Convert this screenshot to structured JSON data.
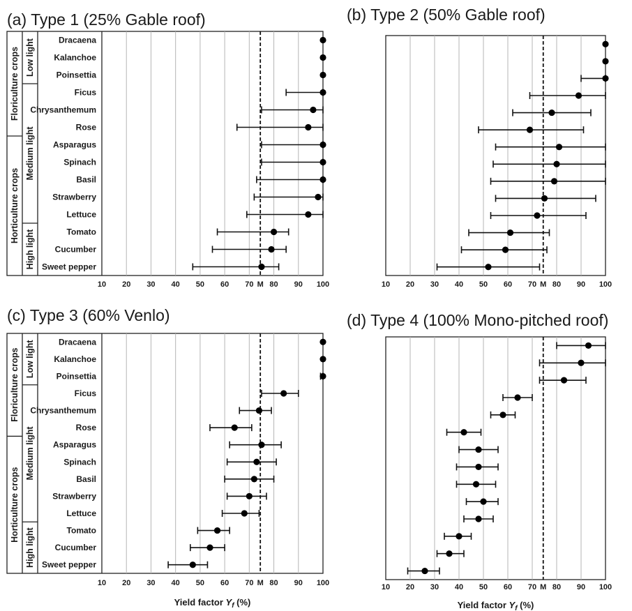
{
  "chart_data": [
    {
      "type": "errorbar-dot",
      "title": "(a) Type 1 (25% Gable roof)",
      "xlabel": "",
      "xlim": [
        10,
        100
      ],
      "xticks": [
        "10",
        "20",
        "30",
        "40",
        "50",
        "60",
        "70",
        "M",
        "80",
        "90",
        "100"
      ],
      "reference_line": {
        "label": "M",
        "x": 74.5,
        "style": "dashed"
      },
      "show_crop_labels": true,
      "categories": [
        "Dracaena",
        "Kalanchoe",
        "Poinsettia",
        "Ficus",
        "Chrysanthemum",
        "Rose",
        "Asparagus",
        "Spinach",
        "Basil",
        "Strawberry",
        "Lettuce",
        "Tomato",
        "Cucumber",
        "Sweet pepper"
      ],
      "values": [
        100,
        100,
        100,
        100,
        96,
        94,
        100,
        100,
        100,
        98,
        94,
        80,
        79,
        75
      ],
      "err_low": [
        100,
        100,
        100,
        85,
        75,
        65,
        75,
        75,
        73,
        72,
        69,
        57,
        55,
        47
      ],
      "err_high": [
        100,
        100,
        100,
        100,
        100,
        100,
        100,
        100,
        100,
        100,
        100,
        86,
        85,
        82
      ],
      "light_groups": [
        {
          "label": "Low light",
          "start": 0,
          "end": 2
        },
        {
          "label": "Medium light",
          "start": 3,
          "end": 10
        },
        {
          "label": "High light",
          "start": 11,
          "end": 13
        }
      ],
      "crop_groups": [
        {
          "label": "Floriculture crops",
          "start": 0,
          "end": 5
        },
        {
          "label": "Horticulture crops",
          "start": 6,
          "end": 13
        }
      ],
      "grid": "vertical"
    },
    {
      "type": "errorbar-dot",
      "title": "(b) Type 2 (50% Gable roof)",
      "xlabel": "",
      "xlim": [
        10,
        100
      ],
      "xticks": [
        "10",
        "20",
        "30",
        "40",
        "50",
        "60",
        "70",
        "M",
        "80",
        "90",
        "100"
      ],
      "reference_line": {
        "label": "M",
        "x": 74.5,
        "style": "dashed"
      },
      "show_crop_labels": false,
      "categories": [
        "Dracaena",
        "Kalanchoe",
        "Poinsettia",
        "Ficus",
        "Chrysanthemum",
        "Rose",
        "Asparagus",
        "Spinach",
        "Basil",
        "Strawberry",
        "Lettuce",
        "Tomato",
        "Cucumber",
        "Sweet pepper"
      ],
      "values": [
        100,
        100,
        100,
        89,
        78,
        69,
        81,
        80,
        79,
        75,
        72,
        61,
        59,
        52
      ],
      "err_low": [
        100,
        100,
        90,
        69,
        62,
        48,
        55,
        54,
        53,
        55,
        53,
        44,
        41,
        31
      ],
      "err_high": [
        100,
        100,
        100,
        100,
        94,
        91,
        100,
        100,
        100,
        96,
        92,
        77,
        76,
        73
      ],
      "grid": "vertical"
    },
    {
      "type": "errorbar-dot",
      "title": "(c) Type 3 (60% Venlo)",
      "xlabel": "Yield factor Y_f (%)",
      "xlim": [
        10,
        100
      ],
      "xticks": [
        "10",
        "20",
        "30",
        "40",
        "50",
        "60",
        "70",
        "M",
        "80",
        "90",
        "100"
      ],
      "reference_line": {
        "label": "M",
        "x": 74.5,
        "style": "dashed"
      },
      "show_crop_labels": true,
      "categories": [
        "Dracaena",
        "Kalanchoe",
        "Poinsettia",
        "Ficus",
        "Chrysanthemum",
        "Rose",
        "Asparagus",
        "Spinach",
        "Basil",
        "Strawberry",
        "Lettuce",
        "Tomato",
        "Cucumber",
        "Sweet pepper"
      ],
      "values": [
        100,
        100,
        100,
        84,
        74,
        64,
        75,
        73,
        72,
        70,
        68,
        57,
        54,
        47
      ],
      "err_low": [
        100,
        100,
        99,
        75,
        66,
        54,
        62,
        61,
        60,
        61,
        59,
        49,
        46,
        37
      ],
      "err_high": [
        100,
        100,
        100,
        90,
        79,
        71,
        83,
        81,
        80,
        77,
        74,
        62,
        60,
        53
      ],
      "light_groups": [
        {
          "label": "Low light",
          "start": 0,
          "end": 2
        },
        {
          "label": "Medium light",
          "start": 3,
          "end": 10
        },
        {
          "label": "High light",
          "start": 11,
          "end": 13
        }
      ],
      "crop_groups": [
        {
          "label": "Floriculture crops",
          "start": 0,
          "end": 5
        },
        {
          "label": "Horticulture crops",
          "start": 6,
          "end": 13
        }
      ],
      "grid": "vertical"
    },
    {
      "type": "errorbar-dot",
      "title": "(d) Type 4 (100% Mono-pitched roof)",
      "xlabel": "Yield factor Y_f (%)",
      "xlim": [
        10,
        100
      ],
      "xticks": [
        "10",
        "20",
        "30",
        "40",
        "50",
        "60",
        "70",
        "M",
        "80",
        "90",
        "100"
      ],
      "reference_line": {
        "label": "M",
        "x": 74.5,
        "style": "dashed"
      },
      "show_crop_labels": false,
      "categories": [
        "Dracaena",
        "Kalanchoe",
        "Poinsettia",
        "Ficus",
        "Chrysanthemum",
        "Rose",
        "Asparagus",
        "Spinach",
        "Basil",
        "Strawberry",
        "Lettuce",
        "Tomato",
        "Cucumber",
        "Sweet pepper"
      ],
      "values": [
        93,
        90,
        83,
        64,
        58,
        42,
        48,
        48,
        47,
        50,
        48,
        40,
        36,
        26
      ],
      "err_low": [
        80,
        73,
        73,
        58,
        53,
        35,
        40,
        39,
        39,
        43,
        42,
        34,
        31,
        19
      ],
      "err_high": [
        100,
        100,
        92,
        70,
        63,
        49,
        56,
        56,
        55,
        56,
        54,
        45,
        42,
        32
      ],
      "grid": "vertical"
    }
  ]
}
